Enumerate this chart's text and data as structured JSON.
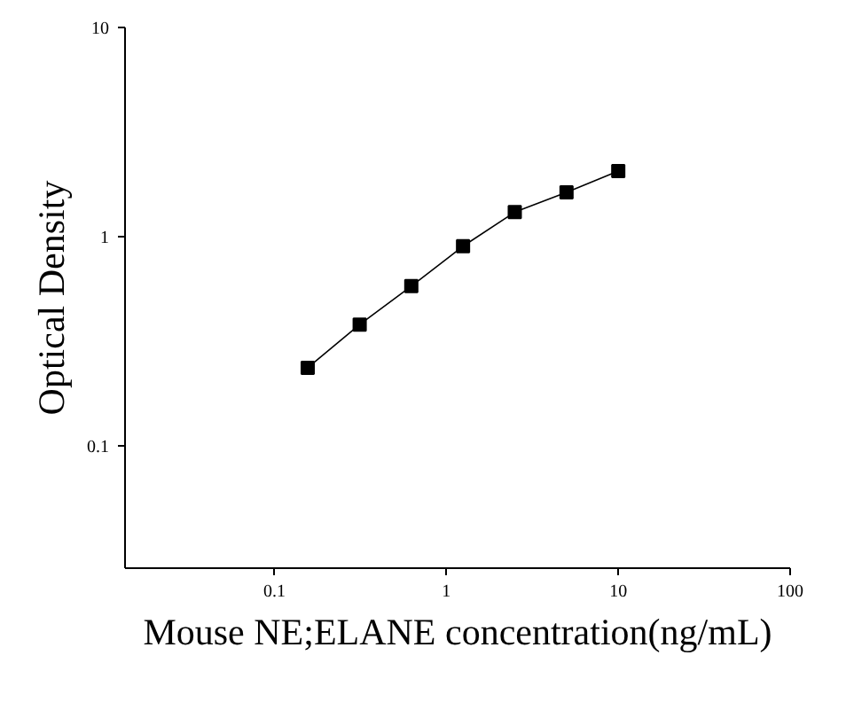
{
  "chart_data": {
    "type": "line",
    "xlabel": "Mouse NE;ELANE concentration(ng/mL)",
    "ylabel": "Optical Density",
    "log": "xy",
    "marker": "square",
    "line_style": "solid",
    "x": [
      0.156,
      0.313,
      0.625,
      1.25,
      2.5,
      5,
      10
    ],
    "series": [
      {
        "color": "#000000",
        "values": [
          0.236,
          0.38,
          0.58,
          0.9,
          1.31,
          1.63,
          2.06
        ]
      }
    ],
    "xlim": [
      0.0135,
      100
    ],
    "ylim": [
      0.026,
      10
    ],
    "xticks": [
      0.1,
      1,
      10,
      100
    ],
    "yticks": [
      0.1,
      1,
      10
    ]
  }
}
